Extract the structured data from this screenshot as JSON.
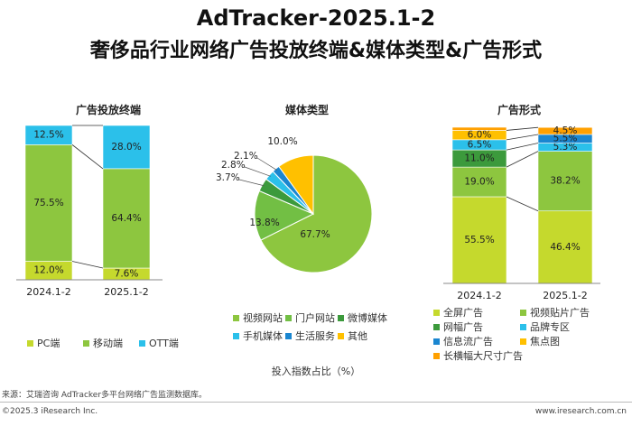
{
  "title_line1": "AdTracker-2025.1-2",
  "title_line2": "奢侈品行业网络广告投放终端&媒体类型&广告形式",
  "axis_note": "投入指数占比（%）",
  "source": "来源：艾瑞咨询 AdTracker多平台网络广告监测数据库。",
  "copyright": "©2025.3 iResearch Inc.",
  "website": "www.iresearch.com.cn",
  "chart_data": [
    {
      "type": "bar",
      "stacked": true,
      "title": "广告投放终端",
      "categories": [
        "2024.1-2",
        "2025.1-2"
      ],
      "series": [
        {
          "name": "PC端",
          "color": "#c5d92d",
          "values": [
            12.0,
            7.6
          ],
          "labels": [
            "12.0%",
            "7.6%"
          ]
        },
        {
          "name": "移动端",
          "color": "#8dc63f",
          "values": [
            75.5,
            64.4
          ],
          "labels": [
            "75.5%",
            "64.4%"
          ]
        },
        {
          "name": "OTT端",
          "color": "#2bc0ea",
          "values": [
            12.5,
            28.0
          ],
          "labels": [
            "12.5%",
            "28.0%"
          ]
        }
      ]
    },
    {
      "type": "pie",
      "title": "媒体类型",
      "slices": [
        {
          "name": "视频网站",
          "value": 67.7,
          "label": "67.7%",
          "color": "#8dc63f"
        },
        {
          "name": "门户网站",
          "value": 13.8,
          "label": "13.8%",
          "color": "#72bf44"
        },
        {
          "name": "微博媒体",
          "value": 3.7,
          "label": "3.7%",
          "color": "#3c9a3c"
        },
        {
          "name": "手机媒体",
          "value": 2.8,
          "label": "2.8%",
          "color": "#2bc0ea"
        },
        {
          "name": "生活服务",
          "value": 2.1,
          "label": "2.1%",
          "color": "#1a86d0"
        },
        {
          "name": "其他",
          "value": 10.0,
          "label": "10.0%",
          "color": "#ffc000"
        }
      ]
    },
    {
      "type": "bar",
      "stacked": true,
      "title": "广告形式",
      "categories": [
        "2024.1-2",
        "2025.1-2"
      ],
      "series": [
        {
          "name": "全屏广告",
          "color": "#c5d92d",
          "values": [
            55.5,
            46.4
          ],
          "labels": [
            "55.5%",
            "46.4%"
          ]
        },
        {
          "name": "视频贴片广告",
          "color": "#8dc63f",
          "values": [
            19.0,
            38.2
          ],
          "labels": [
            "19.0%",
            "38.2%"
          ]
        },
        {
          "name": "网幅广告",
          "color": "#3c9a3c",
          "values": [
            11.0,
            0
          ],
          "labels": [
            "11.0%",
            ""
          ]
        },
        {
          "name": "品牌专区",
          "color": "#2bc0ea",
          "values": [
            6.5,
            5.3
          ],
          "labels": [
            "6.5%",
            "5.3%"
          ]
        },
        {
          "name": "信息流广告",
          "color": "#1a86d0",
          "values": [
            0,
            5.5
          ],
          "labels": [
            "",
            "5.5%"
          ]
        },
        {
          "name": "焦点图",
          "color": "#ffc000",
          "values": [
            6.0,
            0
          ],
          "labels": [
            "6.0%",
            ""
          ]
        },
        {
          "name": "长横幅大尺寸广告",
          "color": "#ffa000",
          "values": [
            2.0,
            4.5
          ],
          "labels": [
            "",
            "4.5%"
          ]
        }
      ]
    }
  ]
}
